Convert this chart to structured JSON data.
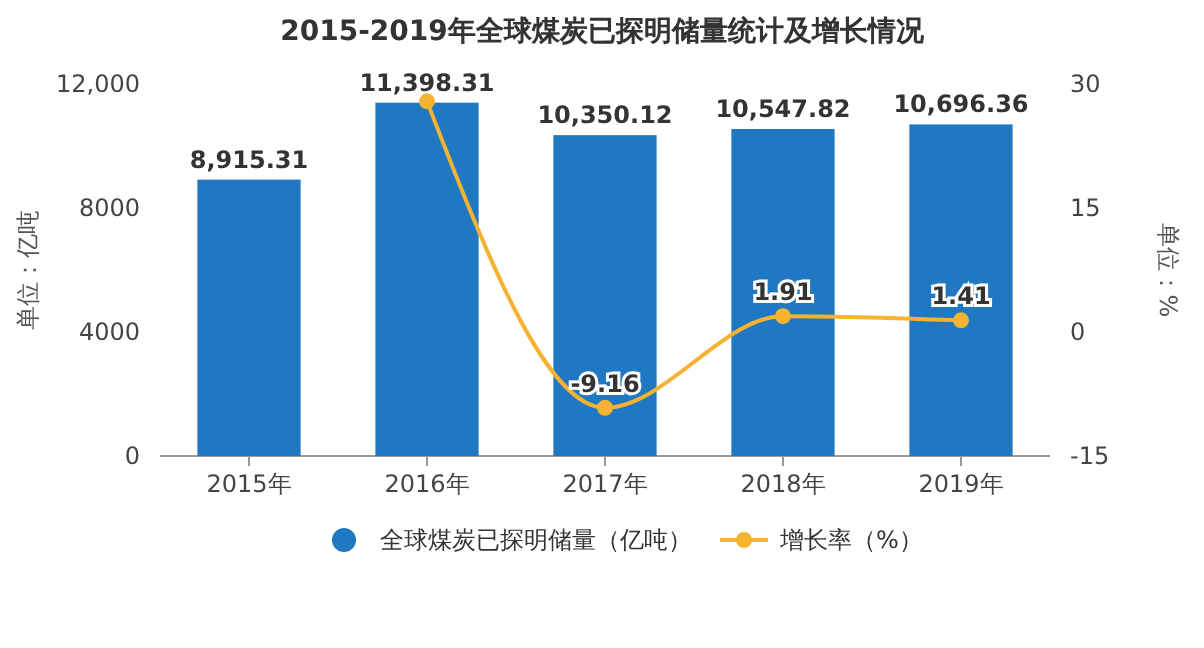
{
  "chart_data": {
    "type": "bar",
    "title": "2015-2019年全球煤炭已探明储量统计及增长情况",
    "categories": [
      "2015年",
      "2016年",
      "2017年",
      "2018年",
      "2019年"
    ],
    "series": [
      {
        "name": "全球煤炭已探明储量（亿吨）",
        "color": "#1f78c1",
        "values": [
          8915.31,
          11398.31,
          10350.12,
          10547.82,
          10696.36
        ],
        "value_labels": [
          "8,915.31",
          "11,398.31",
          "10,350.12",
          "10,547.82",
          "10,696.36"
        ]
      },
      {
        "name": "增长率（%）",
        "type": "line",
        "axis": "y2",
        "color": "#f5b331",
        "values": [
          null,
          27.9,
          -9.16,
          1.91,
          1.41
        ],
        "value_labels": [
          null,
          null,
          "-9.16",
          "1.91",
          "1.41"
        ]
      }
    ],
    "ylabel": "单位：亿吨",
    "y2label": "单位：%",
    "ylim": [
      0,
      12000
    ],
    "yticks": [
      0,
      4000,
      8000,
      {
        "value": 12000,
        "label": "12,000"
      }
    ],
    "y2lim": [
      -15,
      30
    ],
    "y2ticks": [
      -15,
      0,
      15,
      30
    ],
    "marker": "circle",
    "legend": "bottom"
  }
}
